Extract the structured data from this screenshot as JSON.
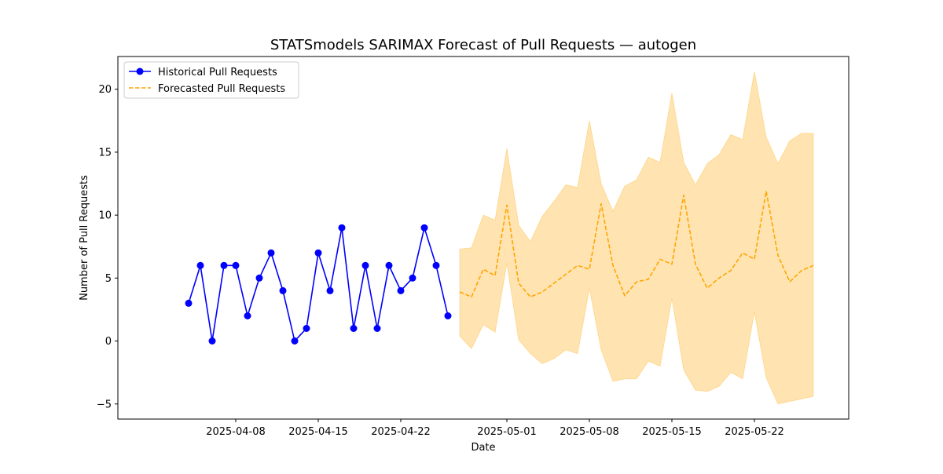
{
  "chart_data": {
    "type": "line",
    "title": "STATSmodels SARIMAX Forecast of Pull Requests — autogen",
    "xlabel": "Date",
    "ylabel": "Number of Pull Requests",
    "xlim": [
      "2025-03-29",
      "2025-05-30"
    ],
    "ylim": [
      -6.2,
      22.6
    ],
    "x_ticks": [
      "2025-04-08",
      "2025-04-15",
      "2025-04-22",
      "2025-05-01",
      "2025-05-08",
      "2025-05-15",
      "2025-05-22"
    ],
    "y_ticks": [
      -5,
      0,
      5,
      10,
      15,
      20
    ],
    "y_tick_labels": [
      "−5",
      "0",
      "5",
      "10",
      "15",
      "20"
    ],
    "legend_position": "top-left",
    "grid": false,
    "series": [
      {
        "name": "Historical Pull Requests",
        "style": "solid-line-with-markers",
        "color": "#0000ff",
        "x": [
          "2025-04-04",
          "2025-04-05",
          "2025-04-06",
          "2025-04-07",
          "2025-04-08",
          "2025-04-09",
          "2025-04-10",
          "2025-04-11",
          "2025-04-12",
          "2025-04-13",
          "2025-04-14",
          "2025-04-15",
          "2025-04-16",
          "2025-04-17",
          "2025-04-18",
          "2025-04-19",
          "2025-04-20",
          "2025-04-21",
          "2025-04-22",
          "2025-04-23",
          "2025-04-24",
          "2025-04-25",
          "2025-04-26"
        ],
        "values": [
          3,
          6,
          0,
          6,
          6,
          2,
          5,
          7,
          4,
          0,
          1,
          7,
          4,
          9,
          1,
          6,
          1,
          6,
          4,
          5,
          9,
          6,
          2
        ]
      },
      {
        "name": "Forecasted Pull Requests",
        "style": "dashed-line",
        "color": "#ffa500",
        "x": [
          "2025-04-27",
          "2025-04-28",
          "2025-04-29",
          "2025-04-30",
          "2025-05-01",
          "2025-05-02",
          "2025-05-03",
          "2025-05-04",
          "2025-05-05",
          "2025-05-06",
          "2025-05-07",
          "2025-05-08",
          "2025-05-09",
          "2025-05-10",
          "2025-05-11",
          "2025-05-12",
          "2025-05-13",
          "2025-05-14",
          "2025-05-15",
          "2025-05-16",
          "2025-05-17",
          "2025-05-18",
          "2025-05-19",
          "2025-05-20",
          "2025-05-21",
          "2025-05-22",
          "2025-05-23",
          "2025-05-24",
          "2025-05-25",
          "2025-05-26",
          "2025-05-27"
        ],
        "values": [
          3.9,
          3.5,
          5.7,
          5.2,
          10.8,
          4.6,
          3.5,
          3.9,
          4.6,
          5.3,
          6.0,
          5.7,
          10.9,
          6.0,
          3.6,
          4.7,
          4.9,
          6.5,
          6.1,
          11.6,
          6.1,
          4.2,
          5.0,
          5.6,
          7.0,
          6.5,
          11.9,
          6.8,
          4.7,
          5.6,
          6.0
        ],
        "lower": [
          0.4,
          -0.6,
          1.3,
          0.7,
          6.2,
          0.1,
          -1.0,
          -1.8,
          -1.4,
          -0.7,
          -1.0,
          4.2,
          -0.7,
          -3.2,
          -3.0,
          -3.0,
          -1.6,
          -2.0,
          3.4,
          -2.3,
          -3.9,
          -4.0,
          -3.6,
          -2.5,
          -3.0,
          2.3,
          -2.9,
          -5.0,
          -4.8,
          -4.6,
          -4.4
        ],
        "upper": [
          7.3,
          7.4,
          10.0,
          9.6,
          15.3,
          9.2,
          7.9,
          9.9,
          11.1,
          12.4,
          12.2,
          17.5,
          12.5,
          10.3,
          12.3,
          12.8,
          14.6,
          14.2,
          19.7,
          14.2,
          12.4,
          14.1,
          14.8,
          16.4,
          16.0,
          21.4,
          16.2,
          14.1,
          15.9,
          16.5,
          16.5
        ]
      }
    ],
    "confidence_band_color": "#ffa500"
  }
}
